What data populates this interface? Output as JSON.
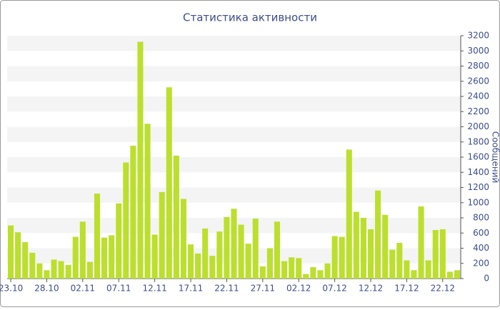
{
  "chart_data": {
    "type": "bar",
    "title": "Статистика активности",
    "y_label": "Сообщений",
    "categories": [
      "23.10",
      null,
      null,
      null,
      null,
      "28.10",
      null,
      null,
      null,
      null,
      "02.11",
      null,
      null,
      null,
      null,
      "07.11",
      null,
      null,
      null,
      null,
      "12.11",
      null,
      null,
      null,
      null,
      "17.11",
      null,
      null,
      null,
      null,
      "22.11",
      null,
      null,
      null,
      null,
      "27.11",
      null,
      null,
      null,
      null,
      "02.12",
      null,
      null,
      null,
      null,
      "07.12",
      null,
      null,
      null,
      null,
      "12.12",
      null,
      null,
      null,
      null,
      "17.12",
      null,
      null,
      null,
      null,
      "22.12",
      null,
      null
    ],
    "values": [
      700,
      610,
      480,
      340,
      200,
      110,
      250,
      230,
      180,
      550,
      750,
      220,
      1120,
      540,
      570,
      990,
      1530,
      1750,
      3120,
      2040,
      580,
      1140,
      2520,
      1620,
      1050,
      450,
      330,
      660,
      300,
      620,
      810,
      920,
      710,
      460,
      790,
      160,
      400,
      750,
      230,
      280,
      270,
      60,
      150,
      110,
      200,
      560,
      550,
      1700,
      880,
      800,
      650,
      1160,
      840,
      380,
      470,
      240,
      110,
      950,
      240,
      640,
      650,
      90,
      110
    ],
    "color": "#bcdf2e",
    "ylim": [
      0,
      3200
    ],
    "yticks": [
      0,
      200,
      400,
      600,
      800,
      1000,
      1200,
      1400,
      1600,
      1800,
      2000,
      2200,
      2400,
      2600,
      2800,
      3000,
      3200
    ],
    "grid": true
  }
}
